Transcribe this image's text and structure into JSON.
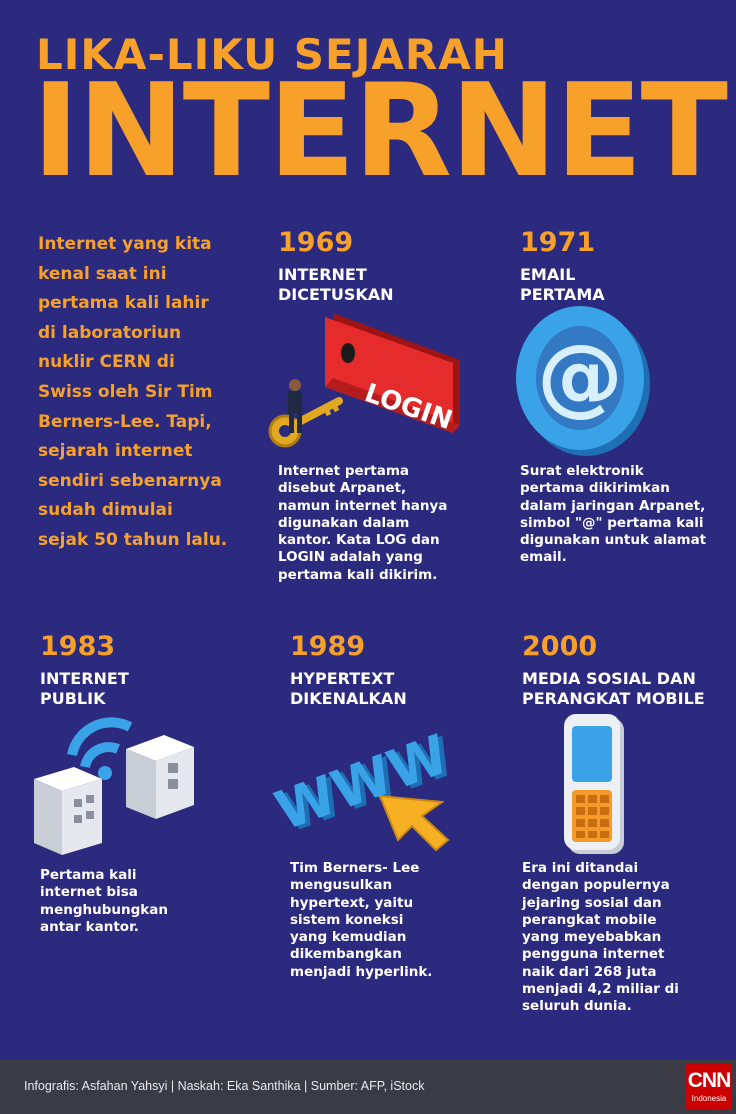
{
  "header": {
    "subtitle": "LIKA-LIKU SEJARAH",
    "title": "INTERNET"
  },
  "intro": "Internet yang kita kenal saat ini pertama kali lahir di laboratoriun nuklir CERN di Swiss oleh Sir Tim Berners-Lee. Tapi, sejarah internet sendiri sebenarnya sudah dimulai sejak 50 tahun lalu.",
  "events": [
    {
      "year": "1969",
      "heading": [
        "INTERNET",
        "DICETUSKAN"
      ],
      "description": "Internet pertama disebut Arpanet, namun internet hanya digunakan dalam kantor. Kata LOG dan LOGIN adalah yang pertama kali dikirim.",
      "illustration_text": "LOGIN"
    },
    {
      "year": "1971",
      "heading": [
        "EMAIL",
        "PERTAMA"
      ],
      "description": "Surat elektronik pertama dikirimkan dalam jaringan Arpanet, simbol \"@\" pertama kali digunakan untuk alamat email.",
      "illustration_text": "@"
    },
    {
      "year": "1983",
      "heading": [
        "INTERNET",
        "PUBLIK"
      ],
      "description": "Pertama kali internet bisa menghubungkan antar kantor."
    },
    {
      "year": "1989",
      "heading": [
        "HYPERTEXT",
        "DIKENALKAN"
      ],
      "description": "Tim Berners- Lee mengusulkan hypertext, yaitu sistem koneksi yang kemudian dikembangkan menjadi hyperlink.",
      "illustration_text": "WWW"
    },
    {
      "year": "2000",
      "heading": [
        "MEDIA SOSIAL DAN",
        "PERANGKAT MOBILE"
      ],
      "description": "Era ini ditandai dengan populernya jejaring sosial dan perangkat mobile yang meyebabkan pengguna internet naik dari 268 juta menjadi 4,2 miliar di seluruh dunia."
    }
  ],
  "footer": {
    "credit": "Infografis: Asfahan Yahsyi | Naskah: Eka Santhika | Sumber: AFP, iStock",
    "logo": "CNN",
    "logo_sub": "Indonesia"
  },
  "icons": [
    "key-login-icon",
    "at-sign-icon",
    "office-buildings-wifi-icon",
    "www-cursor-icon",
    "mobile-phone-icon"
  ],
  "colors": {
    "background": "#2b2a7e",
    "accent": "#f7a12b",
    "text": "#ffffff",
    "footer": "#3b3b45",
    "brand": "#cc0000"
  }
}
